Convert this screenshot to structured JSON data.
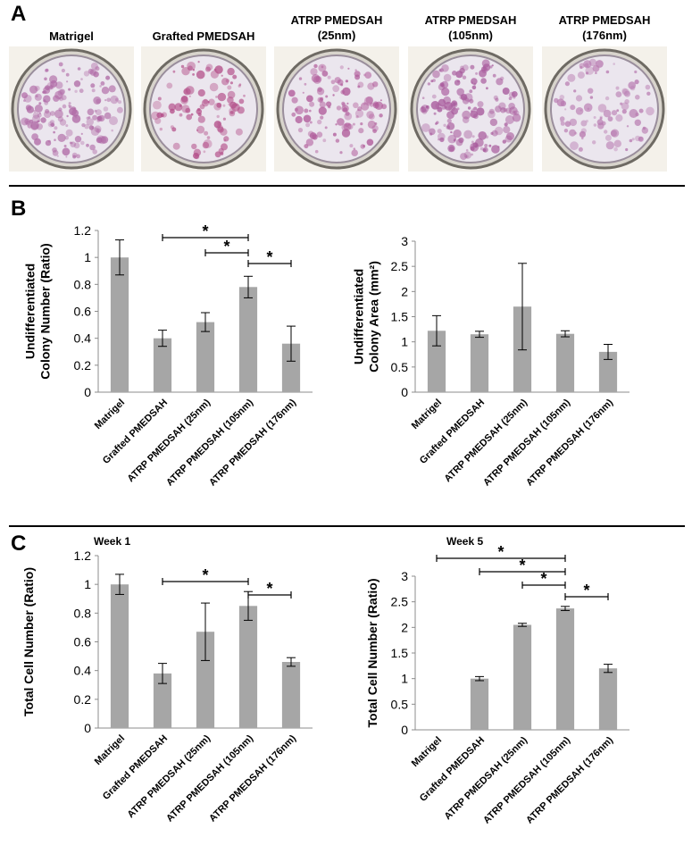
{
  "panel_letters": [
    "A",
    "B",
    "C"
  ],
  "dishes": [
    {
      "label": "Matrigel",
      "density": 0.85,
      "colony_color": "#b06aa6"
    },
    {
      "label": "Grafted PMEDSAH",
      "density": 0.45,
      "colony_color": "#b4508a"
    },
    {
      "label": "ATRP PMEDSAH\n(25nm)",
      "density": 0.55,
      "colony_color": "#b05a9a"
    },
    {
      "label": "ATRP PMEDSAH\n(105nm)",
      "density": 0.8,
      "colony_color": "#a85a9c"
    },
    {
      "label": "ATRP PMEDSAH\n(176nm)",
      "density": 0.4,
      "colony_color": "#b87ab0"
    }
  ],
  "chart_data": [
    {
      "type": "bar",
      "title": "",
      "ylabel": "Undifferentiated\nColony Number (Ratio)",
      "categories": [
        "Matrigel",
        "Grafted PMEDSAH",
        "ATRP PMEDSAH (25nm)",
        "ATRP PMEDSAH (105nm)",
        "ATRP PMEDSAH (176nm)"
      ],
      "values": [
        1.0,
        0.4,
        0.52,
        0.78,
        0.36
      ],
      "errors": [
        0.13,
        0.06,
        0.07,
        0.08,
        0.13
      ],
      "ylim": [
        0,
        1.2
      ],
      "yticks": [
        0,
        0.2,
        0.4,
        0.6,
        0.8,
        1,
        1.2
      ],
      "significance": [
        {
          "from": 1,
          "to": 3,
          "label": "*"
        },
        {
          "from": 2,
          "to": 3,
          "label": "*"
        },
        {
          "from": 3,
          "to": 4,
          "label": "*"
        }
      ]
    },
    {
      "type": "bar",
      "title": "",
      "ylabel": "Undifferentiated\nColony Area (mm²)",
      "categories": [
        "Matrigel",
        "Grafted PMEDSAH",
        "ATRP PMEDSAH (25nm)",
        "ATRP PMEDSAH (105nm)",
        "ATRP PMEDSAH (176nm)"
      ],
      "values": [
        1.22,
        1.15,
        1.7,
        1.16,
        0.8
      ],
      "errors": [
        0.3,
        0.06,
        0.86,
        0.06,
        0.15
      ],
      "ylim": [
        0,
        3
      ],
      "yticks": [
        0,
        0.5,
        1,
        1.5,
        2,
        2.5,
        3
      ],
      "significance": []
    },
    {
      "type": "bar",
      "title": "Week 1",
      "ylabel": "Total Cell Number (Ratio)",
      "categories": [
        "Matrigel",
        "Grafted PMEDSAH",
        "ATRP PMEDSAH (25nm)",
        "ATRP PMEDSAH (105nm)",
        "ATRP PMEDSAH (176nm)"
      ],
      "values": [
        1.0,
        0.38,
        0.67,
        0.85,
        0.46
      ],
      "errors": [
        0.07,
        0.07,
        0.2,
        0.1,
        0.03
      ],
      "ylim": [
        0,
        1.2
      ],
      "yticks": [
        0,
        0.2,
        0.4,
        0.6,
        0.8,
        1,
        1.2
      ],
      "significance": [
        {
          "from": 1,
          "to": 3,
          "label": "*"
        },
        {
          "from": 3,
          "to": 4,
          "label": "*"
        }
      ]
    },
    {
      "type": "bar",
      "title": "Week 5",
      "ylabel": "Total Cell Number (Ratio)",
      "categories": [
        "Matrigel",
        "Grafted PMEDSAH",
        "ATRP PMEDSAH (25nm)",
        "ATRP PMEDSAH (105nm)",
        "ATRP PMEDSAH (176nm)"
      ],
      "values": [
        0,
        1.0,
        2.05,
        2.37,
        1.2
      ],
      "errors": [
        0,
        0.04,
        0.03,
        0.04,
        0.08
      ],
      "ylim": [
        0,
        3
      ],
      "yticks": [
        0,
        0.5,
        1,
        1.5,
        2,
        2.5,
        3
      ],
      "significance": [
        {
          "from": 0,
          "to": 3,
          "label": "*"
        },
        {
          "from": 1,
          "to": 3,
          "label": "*"
        },
        {
          "from": 2,
          "to": 3,
          "label": "*"
        },
        {
          "from": 3,
          "to": 4,
          "label": "*"
        }
      ]
    }
  ],
  "colors": {
    "bar": "#a6a6a6",
    "axis": "#8c8c8c",
    "text": "#000000"
  }
}
